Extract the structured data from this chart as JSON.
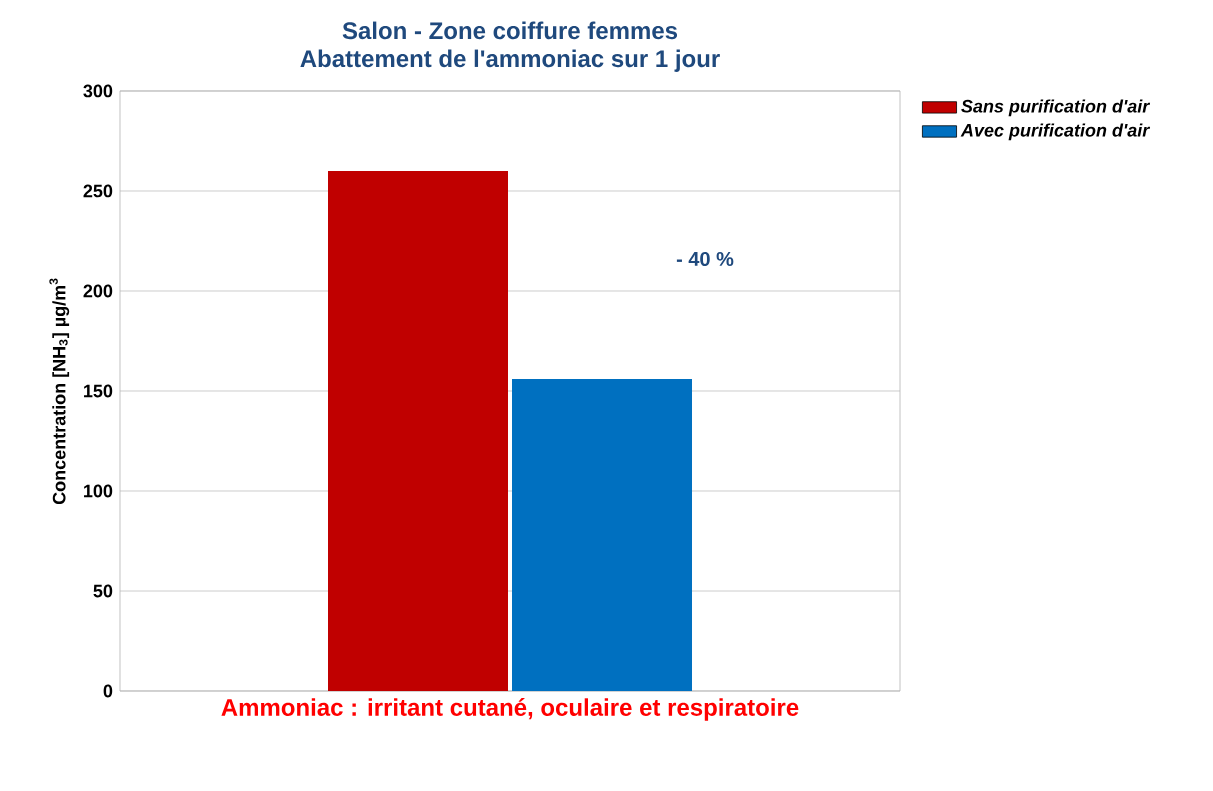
{
  "chart_data": {
    "type": "bar",
    "title": "Salon - Zone coiffure femmes",
    "subtitle": "Abattement de l'ammoniac sur 1 jour",
    "ylabel": "Concentration [NH$_{3}$] µg/m$^{3}$",
    "categories": [
      "Ammoniac : irritant cutané, oculaire et respiratoire"
    ],
    "series": [
      {
        "name": "Sans purification d'air",
        "color": "#c00000",
        "values": [
          260
        ]
      },
      {
        "name": "Avec purification d'air",
        "color": "#0070c0",
        "values": [
          156
        ]
      }
    ],
    "ylim": [
      0,
      300
    ],
    "yticks": [
      0,
      50,
      100,
      150,
      200,
      250,
      300
    ],
    "annotations": [
      "- 40 %"
    ],
    "grid": "y",
    "legend": "top right"
  }
}
